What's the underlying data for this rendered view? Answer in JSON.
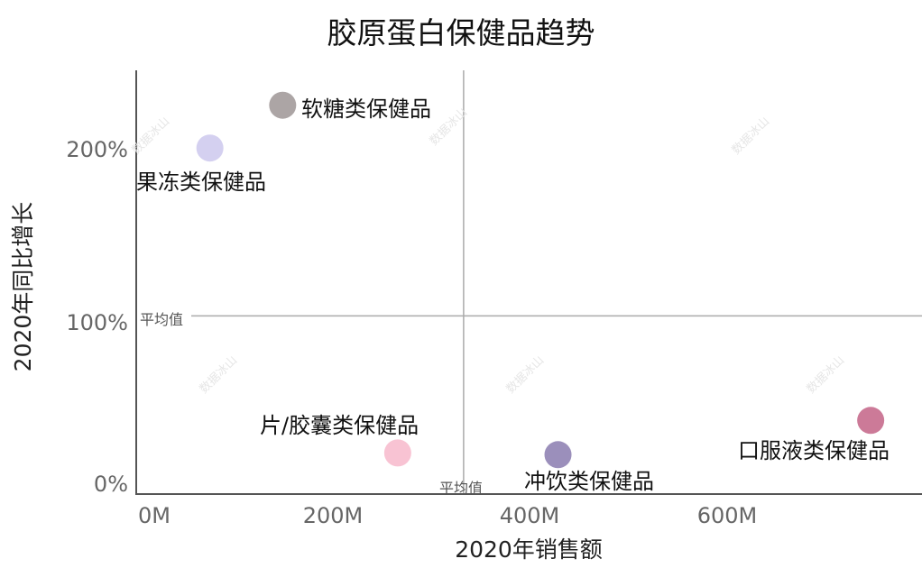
{
  "chart_data": {
    "type": "scatter",
    "title": "胶原蛋白保健品趋势",
    "xlabel": "2020年销售额",
    "ylabel": "2020年同比增长",
    "xlim": [
      0,
      800
    ],
    "ylim": [
      0,
      240
    ],
    "x_ticks": [
      "0M",
      "200M",
      "400M",
      "600M"
    ],
    "x_tick_values": [
      0,
      200,
      400,
      600
    ],
    "y_ticks": [
      "0%",
      "100%",
      "200%"
    ],
    "y_tick_values": [
      0,
      100,
      200
    ],
    "grid": false,
    "reference_lines": {
      "x_average": 332,
      "y_average": 104,
      "x_average_label": "平均值",
      "y_average_label": "平均值"
    },
    "series": [
      {
        "name": "软糖类保健品",
        "x": 148,
        "y": 227,
        "color": "#aca5a5"
      },
      {
        "name": "果冻类保健品",
        "x": 74,
        "y": 202,
        "color": "#d4d0f0"
      },
      {
        "name": "片/胶囊类保健品",
        "x": 265,
        "y": 24,
        "color": "#f8c3d3"
      },
      {
        "name": "冲饮类保健品",
        "x": 428,
        "y": 23,
        "color": "#9b8fbb"
      },
      {
        "name": "口服液类保健品",
        "x": 746,
        "y": 43,
        "color": "#cc7a98"
      }
    ]
  },
  "watermark": "数据冰山"
}
